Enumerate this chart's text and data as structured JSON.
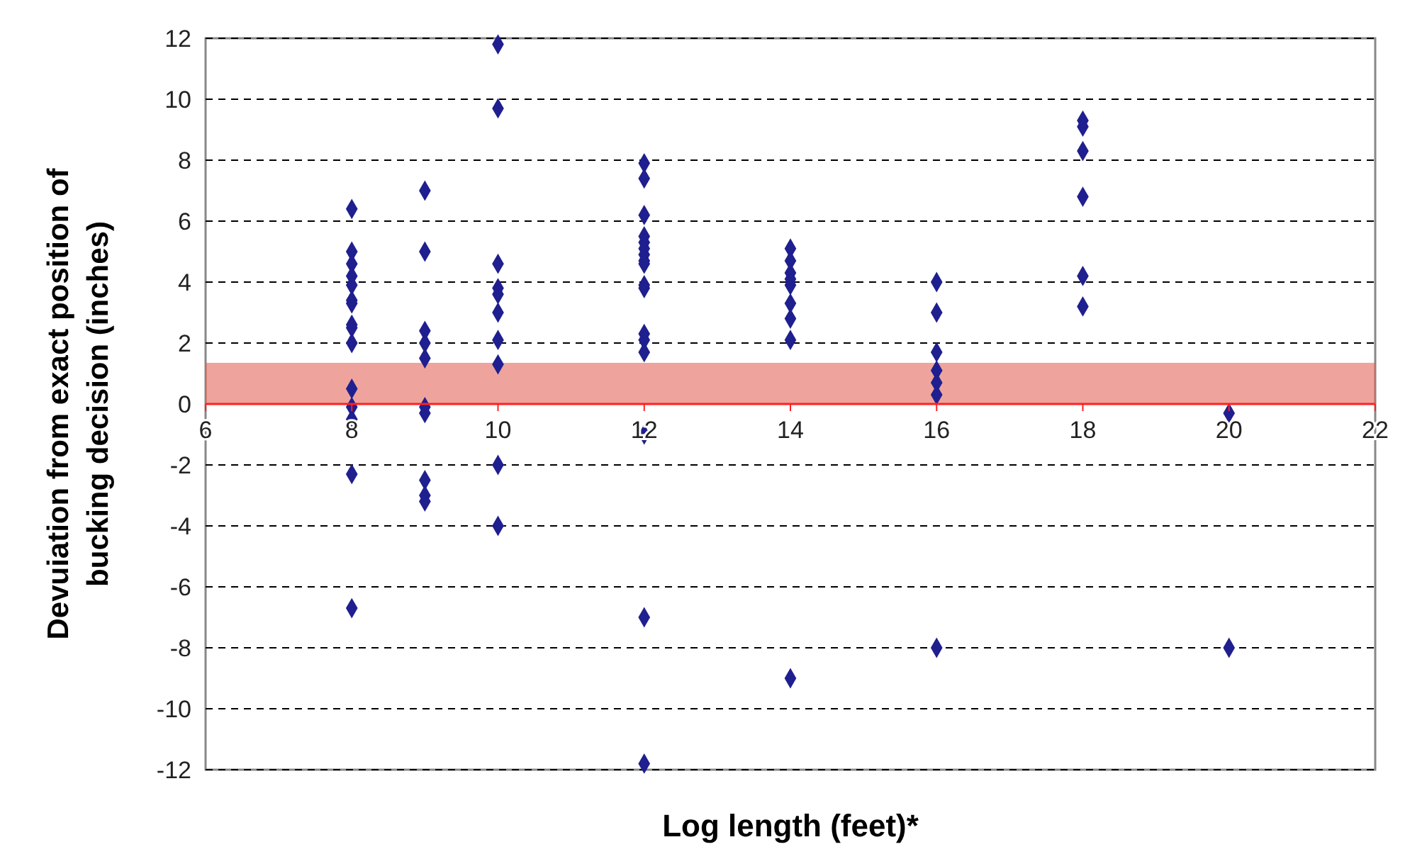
{
  "chart_data": {
    "type": "scatter",
    "xlabel": "Log length (feet)*",
    "ylabel": "Devuiation from exact position of\nbucking decision (inches)",
    "xlim": [
      6,
      22
    ],
    "xticks": [
      6,
      8,
      10,
      12,
      14,
      16,
      18,
      20,
      22
    ],
    "ylim": [
      -12,
      12
    ],
    "yticks": [
      -12,
      -10,
      -8,
      -6,
      -4,
      -2,
      0,
      2,
      4,
      6,
      8,
      10,
      12
    ],
    "grid": "y",
    "marker": "diamond",
    "bands": [
      {
        "axis": "y",
        "from": 0,
        "to": 1.35,
        "color": "#e05a4a"
      }
    ],
    "series": [
      {
        "color": "#1f1f8f",
        "x": [
          8,
          8,
          8,
          8,
          8,
          8,
          8,
          8,
          8,
          8,
          8,
          8,
          8,
          8,
          8,
          9,
          9,
          9,
          9,
          9,
          9,
          9,
          9,
          9,
          9,
          10,
          10,
          10,
          10,
          10,
          10,
          10,
          10,
          10,
          10,
          12,
          12,
          12,
          12,
          12,
          12,
          12,
          12,
          12,
          12,
          12,
          12,
          12,
          12,
          12,
          12,
          12,
          14,
          14,
          14,
          14,
          14,
          14,
          14,
          14,
          14,
          16,
          16,
          16,
          16,
          16,
          16,
          16,
          18,
          18,
          18,
          18,
          18,
          18,
          20,
          20
        ],
        "values": [
          6.4,
          5,
          4.6,
          4.2,
          3.9,
          3.4,
          3.3,
          2.6,
          2.5,
          2,
          0.5,
          -0.1,
          -0.5,
          -2.3,
          -6.7,
          7,
          5,
          2.4,
          2,
          1.5,
          -0.1,
          -0.3,
          -2.5,
          -3,
          -3.2,
          11.8,
          9.7,
          4.6,
          3.8,
          3.6,
          3,
          2.1,
          1.3,
          -2,
          -4,
          7.9,
          7.4,
          6.2,
          5.5,
          5.3,
          5.1,
          4.9,
          4.7,
          4.6,
          3.9,
          3.8,
          2.3,
          2.1,
          1.7,
          -1,
          -7,
          -11.8,
          5.1,
          4.7,
          4.3,
          4.1,
          3.9,
          3.3,
          2.8,
          2.1,
          -9,
          4,
          3,
          1.7,
          1.1,
          0.7,
          0.3,
          -8,
          9.3,
          9.1,
          8.3,
          6.8,
          4.2,
          3.2,
          -0.3,
          -8
        ]
      }
    ]
  }
}
